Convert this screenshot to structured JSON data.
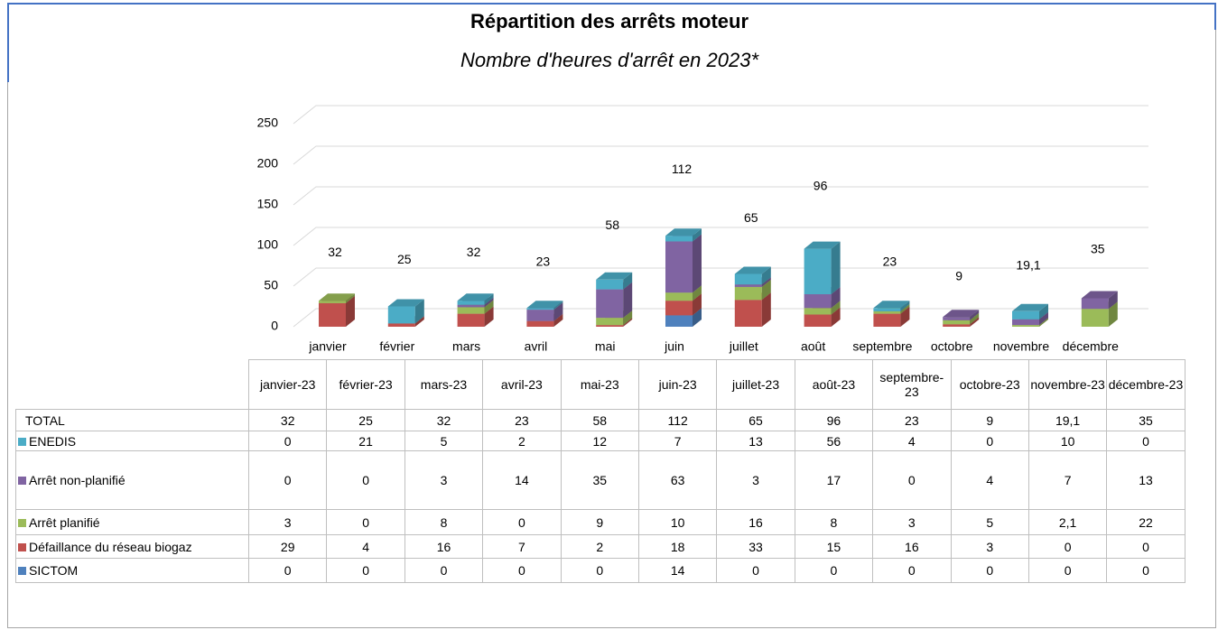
{
  "chart_data": {
    "type": "bar",
    "stacked": true,
    "title": "Répartition des arrêts moteur",
    "subtitle": "Nombre d'heures d'arrêt en 2023*",
    "categories": [
      "janvier",
      "février",
      "mars",
      "avril",
      "mai",
      "juin",
      "juillet",
      "août",
      "septembre",
      "octobre",
      "novembre",
      "décembre"
    ],
    "table_headers": [
      "janvier-23",
      "février-23",
      "mars-23",
      "avril-23",
      "mai-23",
      "juin-23",
      "juillet-23",
      "août-23",
      "septembre-23",
      "octobre-23",
      "novembre-23",
      "décembre-23"
    ],
    "ylim": [
      0,
      250
    ],
    "yticks": [
      0,
      50,
      100,
      150,
      200,
      250
    ],
    "grid": true,
    "total": {
      "name": "TOTAL",
      "values": [
        32,
        25,
        32,
        23,
        58,
        112,
        65,
        96,
        23,
        9,
        19.1,
        35
      ],
      "value_labels": [
        "32",
        "25",
        "32",
        "23",
        "58",
        "112",
        "65",
        "96",
        "23",
        "9",
        "19,1",
        "35"
      ]
    },
    "series": [
      {
        "name": "ENEDIS",
        "color": "#4bacc6",
        "values": [
          0,
          21,
          5,
          2,
          12,
          7,
          13,
          56,
          4,
          0,
          10,
          0
        ]
      },
      {
        "name": "Arrêt non-planifié",
        "color": "#8064a2",
        "values": [
          0,
          0,
          3,
          14,
          35,
          63,
          3,
          17,
          0,
          4,
          7,
          13
        ]
      },
      {
        "name": "Arrêt planifié",
        "color": "#9bbb59",
        "values": [
          3,
          0,
          8,
          0,
          9,
          10,
          16,
          8,
          3,
          5,
          2.1,
          22
        ],
        "value_labels": [
          "3",
          "0",
          "8",
          "0",
          "9",
          "10",
          "16",
          "8",
          "3",
          "5",
          "2,1",
          "22"
        ]
      },
      {
        "name": "Défaillance du réseau biogaz",
        "color": "#c0504d",
        "values": [
          29,
          4,
          16,
          7,
          2,
          18,
          33,
          15,
          16,
          3,
          0,
          0
        ]
      },
      {
        "name": "SICTOM",
        "color": "#4f81bd",
        "values": [
          0,
          0,
          0,
          0,
          0,
          14,
          0,
          0,
          0,
          0,
          0,
          0
        ]
      }
    ]
  }
}
